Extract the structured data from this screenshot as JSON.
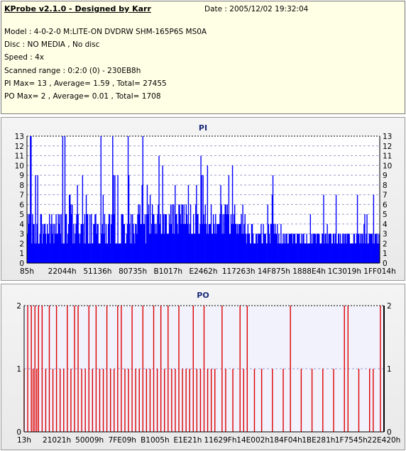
{
  "header": {
    "title": "KProbe v2.1.0 - Designed by Karr",
    "date": "Date : 2005/12/02 19:32:04",
    "lines": [
      "Model : 4-0-2-0 M:LITE-ON DVDRW SHM-165P6S MS0A",
      "Disc : NO MEDIA , No disc",
      "Speed : 4x",
      "Scanned range : 0:2:0 (0) - 230EB8h",
      "PI Max= 13 , Average= 1.59 , Total= 27455",
      "PO Max= 2 , Average= 0.01 , Total= 1708"
    ]
  },
  "colors": {
    "pi": "#0000ff",
    "po": "#dd0000",
    "plot_bg": "#ffffff",
    "po_plot_bg": "#f2f2fc",
    "grid": "#9a9ad0"
  },
  "chart_data": [
    {
      "type": "bar",
      "title": "PI",
      "ylim": [
        0,
        13
      ],
      "yticks": [
        0,
        1,
        2,
        3,
        4,
        5,
        6,
        7,
        8,
        9,
        10,
        11,
        12,
        13
      ],
      "xtick_labels": [
        "85h",
        "22044h",
        "51136h",
        "80735h",
        "B1017h",
        "E2462h",
        "117263h",
        "14F875h",
        "1888E4h",
        "1C3019h",
        "1FF014h"
      ],
      "grid": true,
      "max": 13,
      "average": 1.59,
      "segments": [
        {
          "share": 0.34,
          "base": 2,
          "median": 5,
          "high": 9,
          "max": 13
        },
        {
          "share": 0.28,
          "base": 3,
          "median": 6,
          "high": 11,
          "max": 12
        },
        {
          "share": 0.1,
          "base": 2,
          "median": 4,
          "high": 9,
          "max": 10
        },
        {
          "share": 0.28,
          "base": 2,
          "median": 3,
          "high": 5,
          "max": 7
        }
      ]
    },
    {
      "type": "bar",
      "title": "PO",
      "ylim": [
        0,
        2
      ],
      "yticks": [
        0,
        1,
        2
      ],
      "xtick_labels": [
        "13h",
        "21021h",
        "50009h",
        "7FE09h",
        "B1005h",
        "E1E21h",
        "11629Fh",
        "14E002h",
        "184F04h",
        "1BE281h",
        "1F7545h",
        "22E420h"
      ],
      "grid": true,
      "max": 2,
      "average": 0.01,
      "spikes_at_2": [
        0.01,
        0.02,
        0.03,
        0.04,
        0.05,
        0.07,
        0.09,
        0.12,
        0.14,
        0.15,
        0.18,
        0.2,
        0.23,
        0.26,
        0.27,
        0.3,
        0.33,
        0.36,
        0.38,
        0.4,
        0.43,
        0.47,
        0.5,
        0.55,
        0.6,
        0.62,
        0.74,
        0.89,
        0.9,
        0.99
      ],
      "spikes_at_1": [
        0.0,
        0.025,
        0.035,
        0.06,
        0.08,
        0.1,
        0.11,
        0.13,
        0.16,
        0.17,
        0.19,
        0.21,
        0.22,
        0.24,
        0.25,
        0.28,
        0.29,
        0.31,
        0.32,
        0.34,
        0.35,
        0.37,
        0.39,
        0.41,
        0.42,
        0.44,
        0.45,
        0.46,
        0.48,
        0.49,
        0.51,
        0.52,
        0.53,
        0.56,
        0.58,
        0.61,
        0.64,
        0.66,
        0.69,
        0.72,
        0.77,
        0.8,
        0.83,
        0.86,
        0.93,
        0.96,
        0.97
      ]
    }
  ]
}
